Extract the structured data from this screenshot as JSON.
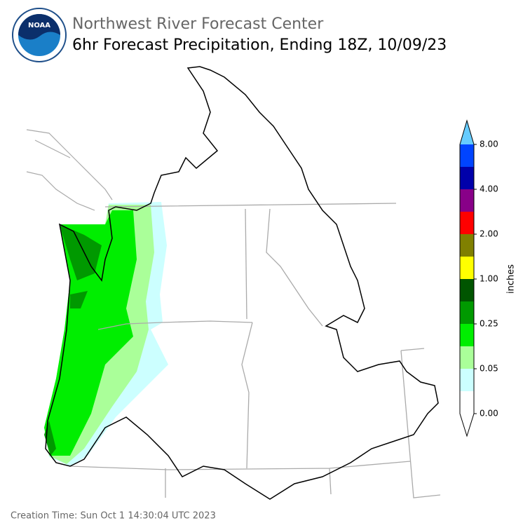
{
  "header": {
    "title": "Northwest River Forecast Center",
    "subtitle": "6hr Forecast Precipitation, Ending 18Z, 10/09/23"
  },
  "logo": {
    "text": "NOAA"
  },
  "legend": {
    "unit": "inches",
    "labels": [
      "0.00",
      "0.05",
      "0.25",
      "1.00",
      "2.00",
      "4.00",
      "8.00"
    ],
    "colors": [
      "#ffffff",
      "#ccffff",
      "#aaff99",
      "#00ee00",
      "#009900",
      "#005500",
      "#ffff00",
      "#808000",
      "#ff0000",
      "#880088",
      "#0000aa",
      "#0044ff"
    ],
    "over_color": "#66ccff",
    "under_color": "#ffffff"
  },
  "footer": {
    "creation_time": "Creation Time: Sun Oct 1 14:30:04 UTC 2023"
  }
}
